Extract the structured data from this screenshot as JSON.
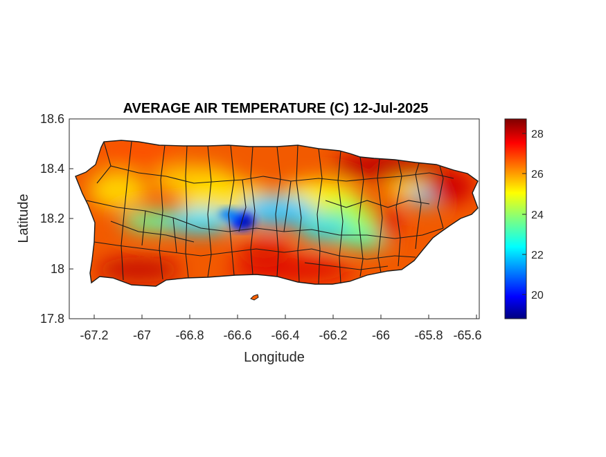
{
  "map": {
    "title": "AVERAGE AIR TEMPERATURE (C) 12-Jul-2025",
    "xlabel": "Longitude",
    "ylabel": "Latitude",
    "xlim": [
      -67.3,
      -65.58
    ],
    "ylim": [
      17.8,
      18.6
    ],
    "x_ticks": [
      "-67.2",
      "-67",
      "-66.8",
      "-66.6",
      "-66.4",
      "-66.2",
      "-66",
      "-65.8",
      "-65.6"
    ],
    "x_tick_values": [
      -67.2,
      -67.0,
      -66.8,
      -66.6,
      -66.4,
      -66.2,
      -66.0,
      -65.8,
      -65.6
    ],
    "y_ticks": [
      "18.6",
      "18.4",
      "18.2",
      "18",
      "17.8"
    ],
    "y_tick_values": [
      18.6,
      18.4,
      18.2,
      18.0,
      17.8
    ],
    "colorbar": {
      "colormap": "jet",
      "limits": [
        18.8,
        28.7
      ],
      "ticks": [
        "28",
        "26",
        "24",
        "22",
        "20"
      ],
      "tick_values": [
        28,
        26,
        24,
        22,
        20
      ]
    },
    "colors": {
      "municipality_borders": "#1a1a1a",
      "axes": "#262626"
    }
  }
}
